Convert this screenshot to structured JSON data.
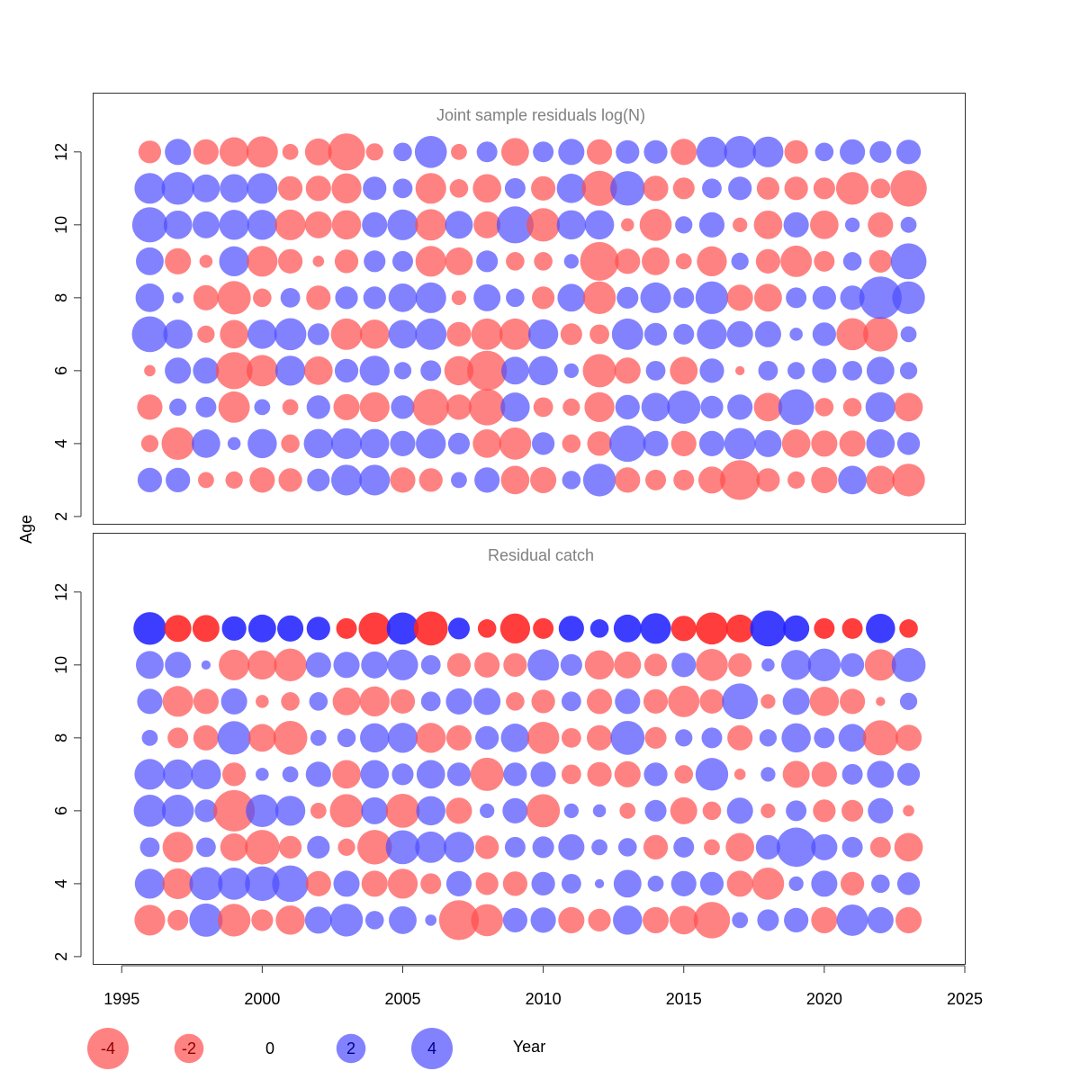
{
  "chart_data": {
    "type": "scatter",
    "subtype": "bubble",
    "xlabel": "Year",
    "ylabel": "Age",
    "xlim": [
      1994,
      2025
    ],
    "xticks": [
      1995,
      2000,
      2005,
      2010,
      2015,
      2020,
      2025
    ],
    "ylim": [
      1.8,
      13.6
    ],
    "yticks": [
      2,
      4,
      6,
      8,
      10,
      12
    ],
    "colors": {
      "negative": "#ff4d4d",
      "positive": "#4d4dff",
      "negative_strong": "#ff2222",
      "positive_strong": "#2222ff"
    },
    "legend": {
      "placement": "bottom",
      "values": [
        -4,
        -2,
        0,
        2,
        4
      ],
      "labels": [
        "-4",
        "-2",
        "0",
        "2",
        "4"
      ]
    },
    "panels": [
      {
        "title": "Joint sample residuals log(N)",
        "ages": [
          3,
          4,
          5,
          6,
          7,
          8,
          9,
          10,
          11,
          12
        ],
        "years": [
          1996,
          1997,
          1998,
          1999,
          2000,
          2001,
          2002,
          2003,
          2004,
          2005,
          2006,
          2007,
          2008,
          2009,
          2010,
          2011,
          2012,
          2013,
          2014,
          2015,
          2016,
          2017,
          2018,
          2019,
          2020,
          2021,
          2022,
          2023
        ],
        "residuals": [
          [
            1.4,
            1.4,
            -0.6,
            -0.7,
            -1.5,
            -1.3,
            1.2,
            2.2,
            2.2,
            -1.5,
            -1.3,
            0.6,
            1.5,
            -1.9,
            -1.6,
            0.8,
            2.5,
            -1.5,
            -1.0,
            -1.0,
            -1.7,
            -3.7,
            -1.3,
            -0.7,
            -1.6,
            1.9,
            -1.9,
            -2.5
          ],
          [
            -0.7,
            -2.5,
            1.9,
            0.4,
            2.0,
            -0.8,
            2.0,
            2.2,
            2.0,
            1.5,
            2.1,
            1.1,
            -1.9,
            -2.4,
            1.2,
            -0.8,
            -1.4,
            3.1,
            1.5,
            -1.5,
            1.5,
            2.3,
            1.7,
            -1.9,
            -1.6,
            -1.6,
            1.9,
            1.2
          ],
          [
            -1.5,
            0.7,
            1.0,
            -2.3,
            0.6,
            -0.6,
            1.3,
            -1.6,
            -2.1,
            1.3,
            -3.1,
            -1.5,
            -3.1,
            2.0,
            -0.9,
            -0.7,
            -2.1,
            1.4,
            1.9,
            2.6,
            1.2,
            1.5,
            -1.9,
            3.0,
            -0.8,
            -0.8,
            2.1,
            -1.9
          ],
          [
            -0.3,
            1.6,
            1.6,
            -3.2,
            -2.3,
            2.1,
            -1.9,
            1.3,
            2.1,
            0.7,
            1.0,
            -2.0,
            -3.7,
            1.8,
            2.0,
            0.5,
            -2.6,
            -1.6,
            0.9,
            -1.8,
            1.4,
            -0.2,
            0.9,
            0.7,
            1.4,
            0.9,
            1.8,
            0.7
          ],
          [
            3.0,
            2.0,
            -0.7,
            -1.9,
            2.0,
            2.4,
            1.1,
            -2.3,
            -2.0,
            1.9,
            2.3,
            -1.4,
            -2.3,
            -2.3,
            2.1,
            -1.1,
            -0.9,
            2.3,
            1.2,
            1.0,
            2.1,
            1.6,
            1.6,
            0.4,
            1.3,
            -2.4,
            -2.8,
            0.6
          ],
          [
            1.9,
            0.3,
            -1.5,
            -2.6,
            -0.8,
            0.9,
            -1.4,
            1.2,
            1.2,
            1.9,
            2.2,
            -0.5,
            1.7,
            0.8,
            -1.2,
            1.8,
            -2.5,
            1.1,
            2.2,
            1.0,
            2.5,
            -1.6,
            -1.8,
            1.0,
            1.3,
            1.4,
            4.2,
            2.5
          ],
          [
            1.8,
            -1.6,
            -0.4,
            2.1,
            -2.2,
            -1.4,
            -0.3,
            -1.3,
            1.1,
            1.0,
            -2.2,
            -1.8,
            1.1,
            -0.8,
            -0.8,
            0.5,
            -3.5,
            -1.5,
            -1.8,
            -0.6,
            -2.1,
            0.7,
            -1.4,
            -2.3,
            -1.0,
            0.8,
            -1.2,
            3.0
          ],
          [
            2.9,
            1.9,
            1.7,
            2.1,
            2.1,
            -2.2,
            -1.7,
            -2.0,
            1.5,
            2.2,
            -2.3,
            1.8,
            -1.7,
            3.2,
            -2.6,
            2.0,
            2.0,
            -0.4,
            -2.4,
            0.7,
            1.5,
            -0.5,
            -1.9,
            1.5,
            -1.9,
            0.5,
            -1.5,
            0.6
          ],
          [
            2.2,
            2.5,
            1.8,
            1.9,
            2.2,
            -1.4,
            -1.5,
            -2.1,
            1.3,
            0.9,
            -2.2,
            -0.8,
            -1.9,
            1.0,
            -1.4,
            2.0,
            -2.9,
            2.8,
            -1.5,
            -1.1,
            0.9,
            1.3,
            -1.2,
            -1.3,
            -1.1,
            -2.5,
            -0.9,
            -3.1
          ],
          [
            -1.2,
            1.6,
            -1.5,
            -2.0,
            -2.3,
            -0.6,
            -1.7,
            -3.2,
            -0.7,
            0.8,
            2.4,
            -0.6,
            1.0,
            -1.8,
            1.0,
            1.6,
            -1.5,
            1.3,
            1.3,
            -1.6,
            2.2,
            2.4,
            2.2,
            -1.3,
            0.8,
            1.5,
            1.1,
            1.4
          ]
        ]
      },
      {
        "title": "Residual catch",
        "ages": [
          3,
          4,
          5,
          6,
          7,
          8,
          9,
          10,
          11
        ],
        "years": [
          1996,
          1997,
          1998,
          1999,
          2000,
          2001,
          2002,
          2003,
          2004,
          2005,
          2006,
          2007,
          2008,
          2009,
          2010,
          2011,
          2012,
          2013,
          2014,
          2015,
          2016,
          2017,
          2018,
          2019,
          2020,
          2021,
          2022,
          2023
        ],
        "residuals": [
          [
            -2.2,
            -1.0,
            2.6,
            -2.5,
            -1.1,
            -2.0,
            1.7,
            2.5,
            0.8,
            1.8,
            0.3,
            -3.7,
            -2.4,
            1.4,
            1.5,
            -1.6,
            -1.2,
            2.0,
            -1.6,
            -1.9,
            -3.1,
            0.6,
            1.1,
            1.4,
            -1.6,
            2.3,
            1.6,
            -1.6
          ],
          [
            2.1,
            -2.2,
            2.6,
            2.4,
            2.8,
            3.1,
            -1.5,
            1.6,
            -1.6,
            -2.1,
            -1.0,
            1.5,
            -1.2,
            -1.4,
            1.3,
            0.9,
            0.2,
            1.8,
            0.6,
            1.5,
            1.3,
            -1.6,
            -2.4,
            0.5,
            1.6,
            -1.3,
            0.8,
            1.2
          ],
          [
            0.9,
            -2.2,
            0.9,
            -1.8,
            -2.8,
            -1.2,
            1.2,
            -0.7,
            -2.8,
            2.7,
            2.3,
            2.2,
            -1.3,
            1.0,
            1.1,
            1.6,
            0.6,
            0.8,
            -1.4,
            1.0,
            -0.6,
            -1.9,
            1.4,
            3.6,
            1.6,
            1.0,
            -1.0,
            -1.9
          ],
          [
            2.4,
            2.4,
            1.2,
            -4.0,
            2.5,
            2.1,
            -0.6,
            -2.6,
            1.7,
            -2.7,
            2.0,
            -1.6,
            0.5,
            1.5,
            -2.6,
            0.5,
            0.4,
            -0.6,
            1.1,
            -1.7,
            -0.8,
            1.6,
            -0.5,
            1.0,
            -1.2,
            -1.1,
            1.5,
            -0.3
          ],
          [
            2.2,
            2.1,
            2.1,
            -1.3,
            0.4,
            0.6,
            1.5,
            -1.9,
            1.9,
            1.1,
            1.9,
            1.3,
            -2.6,
            1.3,
            1.5,
            -0.9,
            -1.4,
            -1.6,
            1.3,
            -0.8,
            2.5,
            -0.3,
            0.5,
            -1.7,
            -1.5,
            1.0,
            1.7,
            1.2
          ],
          [
            0.6,
            -1.0,
            -1.5,
            2.6,
            -1.8,
            -2.7,
            0.6,
            0.8,
            2.0,
            2.1,
            -2.1,
            -1.5,
            1.3,
            1.9,
            -2.4,
            -0.9,
            -1.5,
            2.7,
            -1.1,
            0.7,
            1.0,
            -1.5,
            0.7,
            2.0,
            1.0,
            1.8,
            -2.9,
            -1.6
          ],
          [
            1.5,
            -2.2,
            -1.5,
            1.6,
            -0.4,
            -0.8,
            0.8,
            -1.8,
            -2.1,
            -1.4,
            0.9,
            1.6,
            1.7,
            -0.8,
            -1.3,
            0.9,
            -1.5,
            1.5,
            -1.4,
            -2.3,
            -1.4,
            3.0,
            -0.5,
            1.7,
            -2.0,
            -1.5,
            -0.2,
            0.7
          ],
          [
            1.8,
            1.6,
            0.2,
            -2.2,
            -2.0,
            -2.5,
            1.5,
            1.6,
            1.7,
            2.2,
            0.9,
            -1.3,
            -1.5,
            -1.3,
            2.3,
            1.1,
            -2.0,
            -1.7,
            -1.2,
            1.4,
            -2.4,
            -1.3,
            0.4,
            2.1,
            2.5,
            1.3,
            -2.3,
            2.7
          ],
          [
            2.5,
            -1.7,
            -1.7,
            1.4,
            1.8,
            1.6,
            1.3,
            -1.0,
            -2.4,
            2.4,
            -2.7,
            1.1,
            -0.8,
            -2.1,
            -1.0,
            1.5,
            0.8,
            1.8,
            2.2,
            -1.5,
            -2.4,
            -1.8,
            3.0,
            1.6,
            -1.0,
            -1.0,
            2.0,
            -0.8
          ]
        ]
      }
    ]
  }
}
